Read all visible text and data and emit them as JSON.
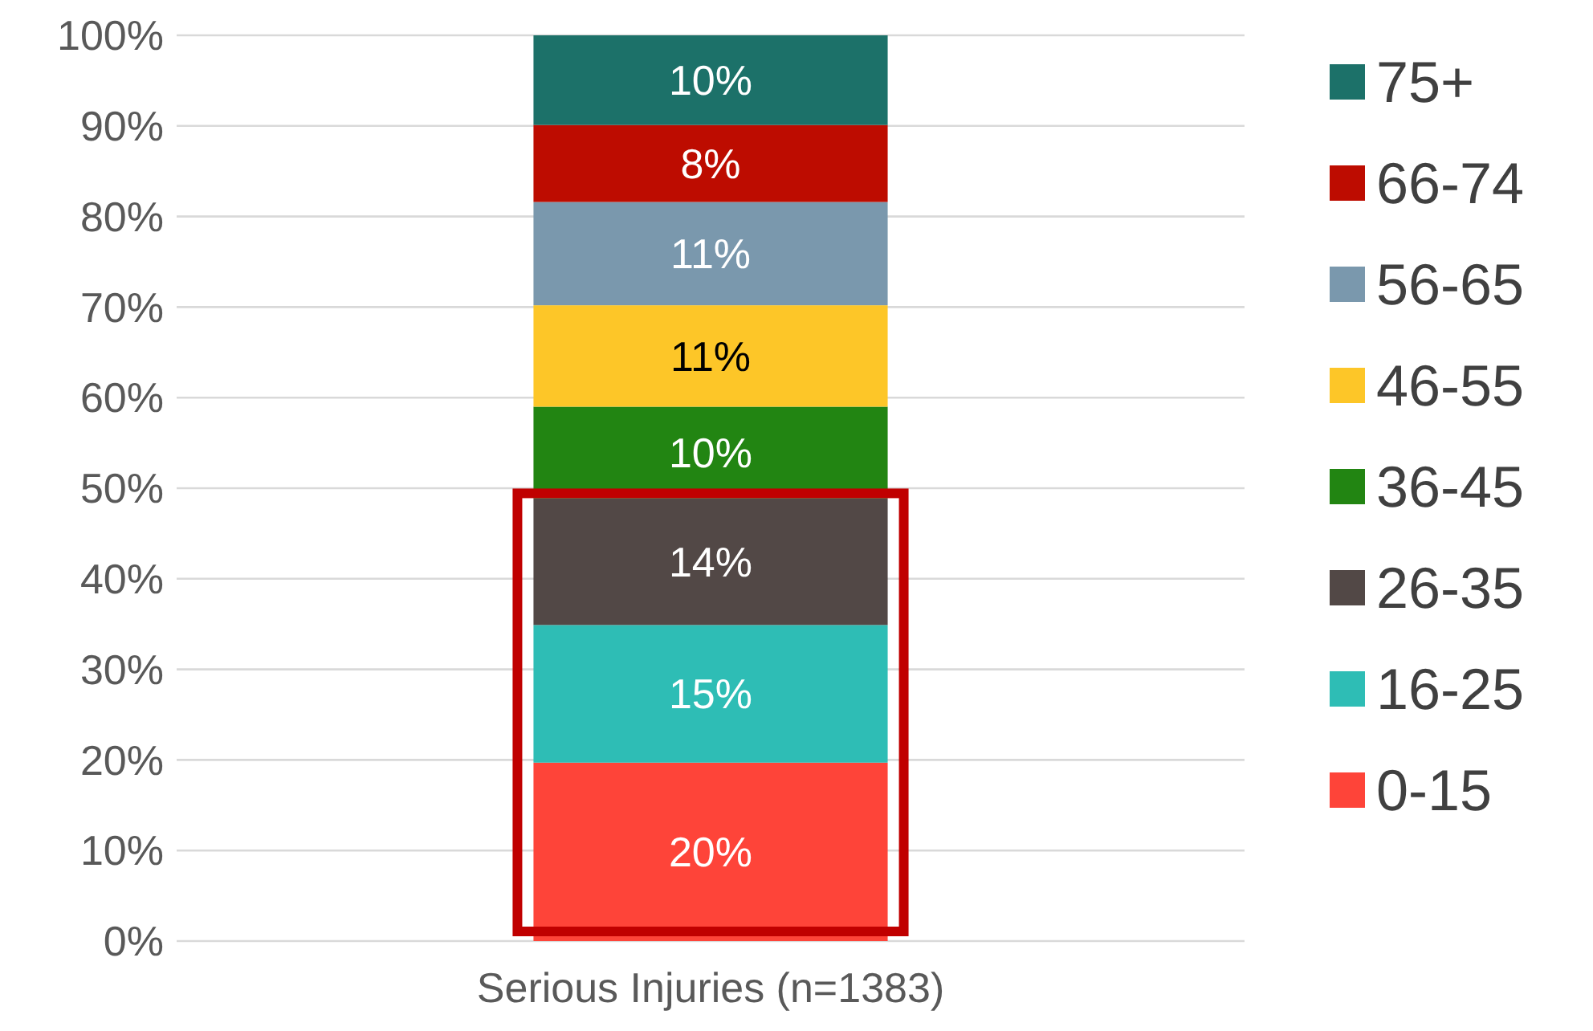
{
  "chart_data": {
    "type": "bar",
    "stacked": true,
    "categories": [
      "Serious Injuries (n=1383)"
    ],
    "series": [
      {
        "name": "0-15",
        "color": "#fe4439",
        "values": [
          19.7
        ],
        "value_labels": [
          "20%"
        ]
      },
      {
        "name": "16-25",
        "color": "#2ebdb5",
        "values": [
          15.2
        ],
        "value_labels": [
          "15%"
        ]
      },
      {
        "name": "26-35",
        "color": "#524846",
        "values": [
          14.0
        ],
        "value_labels": [
          "14%"
        ]
      },
      {
        "name": "36-45",
        "color": "#228512",
        "values": [
          10.1
        ],
        "value_labels": [
          "10%"
        ]
      },
      {
        "name": "46-55",
        "color": "#fdc628",
        "values": [
          11.2
        ],
        "value_labels": [
          "11%"
        ]
      },
      {
        "name": "56-65",
        "color": "#7a98ad",
        "values": [
          11.4
        ],
        "value_labels": [
          "11%"
        ]
      },
      {
        "name": "66-74",
        "color": "#bd0c00",
        "values": [
          8.5
        ],
        "value_labels": [
          "8%"
        ]
      },
      {
        "name": "75+",
        "color": "#1c7169",
        "values": [
          9.9
        ],
        "value_labels": [
          "10%"
        ]
      }
    ],
    "ylim": [
      0,
      100
    ],
    "yticks": [
      {
        "value": 0,
        "label": "0%"
      },
      {
        "value": 10,
        "label": "10%"
      },
      {
        "value": 20,
        "label": "20%"
      },
      {
        "value": 30,
        "label": "30%"
      },
      {
        "value": 40,
        "label": "40%"
      },
      {
        "value": 50,
        "label": "50%"
      },
      {
        "value": 60,
        "label": "60%"
      },
      {
        "value": 70,
        "label": "70%"
      },
      {
        "value": 80,
        "label": "80%"
      },
      {
        "value": 90,
        "label": "90%"
      },
      {
        "value": 100,
        "label": "100%"
      }
    ],
    "grid": "y",
    "legend": "right"
  }
}
